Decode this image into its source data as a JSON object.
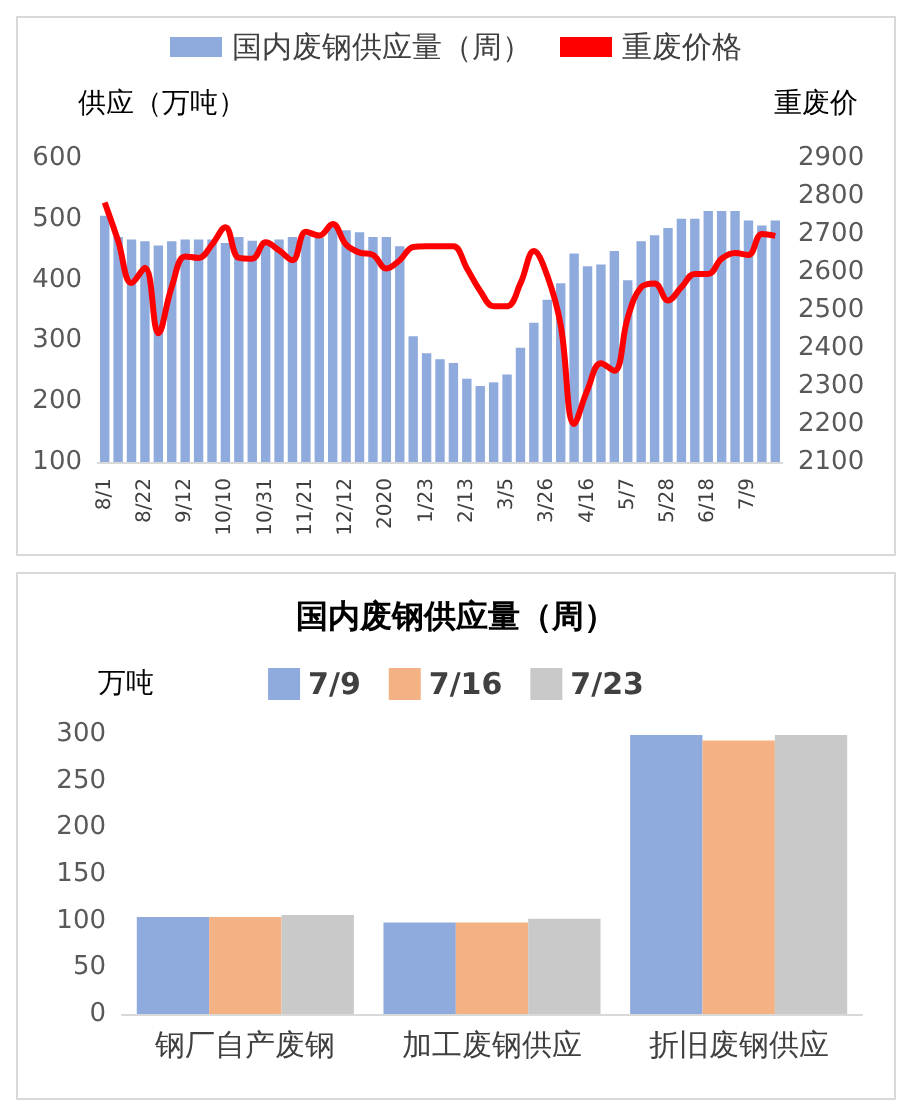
{
  "chart_data": [
    {
      "type": "bar",
      "ylabel": "供应（万吨）",
      "y2label": "重废价",
      "categories": [
        "8/1",
        null,
        null,
        "8/22",
        null,
        null,
        "9/12",
        null,
        null,
        "10/10",
        null,
        null,
        "10/31",
        null,
        null,
        "11/21",
        null,
        null,
        "12/12",
        null,
        null,
        "2020",
        null,
        null,
        "1/23",
        null,
        null,
        "2/13",
        null,
        null,
        "3/5",
        null,
        null,
        "3/26",
        null,
        null,
        "4/16",
        null,
        null,
        "5/7",
        null,
        null,
        "5/28",
        null,
        null,
        "6/18",
        null,
        null,
        "7/9",
        null,
        null
      ],
      "series": [
        {
          "name": "国内废钢供应量（周）",
          "color": "#8faadc",
          "values": [
            505,
            470,
            466,
            463,
            456,
            463,
            466,
            466,
            466,
            460,
            470,
            464,
            464,
            466,
            470,
            473,
            469,
            489,
            481,
            478,
            470,
            470,
            455,
            307,
            279,
            269,
            263,
            237,
            225,
            231,
            244,
            288,
            329,
            367,
            394,
            443,
            422,
            425,
            447,
            399,
            463,
            473,
            485,
            500,
            500,
            513,
            513,
            513,
            497,
            489,
            497
          ]
        },
        {
          "name": "重废价格",
          "type": "line",
          "axis": "y2",
          "color": "#ff0000",
          "values": [
            2783,
            2682,
            2571,
            2611,
            2439,
            2561,
            2641,
            2637,
            2672,
            2718,
            2637,
            2635,
            2678,
            2657,
            2631,
            2706,
            2696,
            2726,
            2672,
            2651,
            2645,
            2609,
            2631,
            2666,
            2668,
            2668,
            2668,
            2610,
            2550,
            2510,
            2510,
            2570,
            2655,
            2590,
            2460,
            2200,
            2290,
            2360,
            2340,
            2480,
            2560,
            2570,
            2525,
            2560,
            2595,
            2595,
            2635,
            2650,
            2645,
            2700,
            2695
          ]
        }
      ],
      "ylim": [
        100,
        600
      ],
      "yticks": [
        100,
        200,
        300,
        400,
        500,
        600
      ],
      "y2lim": [
        2100,
        2900
      ],
      "y2ticks": [
        2100,
        2200,
        2300,
        2400,
        2500,
        2600,
        2700,
        2800,
        2900
      ],
      "legend": "top",
      "grid": false,
      "marker": "none"
    },
    {
      "type": "bar",
      "title": "国内废钢供应量（周）",
      "ylabel": "万吨",
      "categories": [
        "钢厂自产废钢",
        "加工废钢供应",
        "折旧废钢供应"
      ],
      "series": [
        {
          "name": "7/9",
          "color": "#8faadc",
          "values": [
            104,
            98,
            299
          ]
        },
        {
          "name": "7/16",
          "color": "#f4b183",
          "values": [
            104,
            98,
            293
          ]
        },
        {
          "name": "7/23",
          "color": "#c9c9c9",
          "values": [
            106,
            102,
            299
          ]
        }
      ],
      "ylim": [
        0,
        300
      ],
      "yticks": [
        0,
        50,
        100,
        150,
        200,
        250,
        300
      ],
      "legend": "top",
      "grid": false
    }
  ]
}
